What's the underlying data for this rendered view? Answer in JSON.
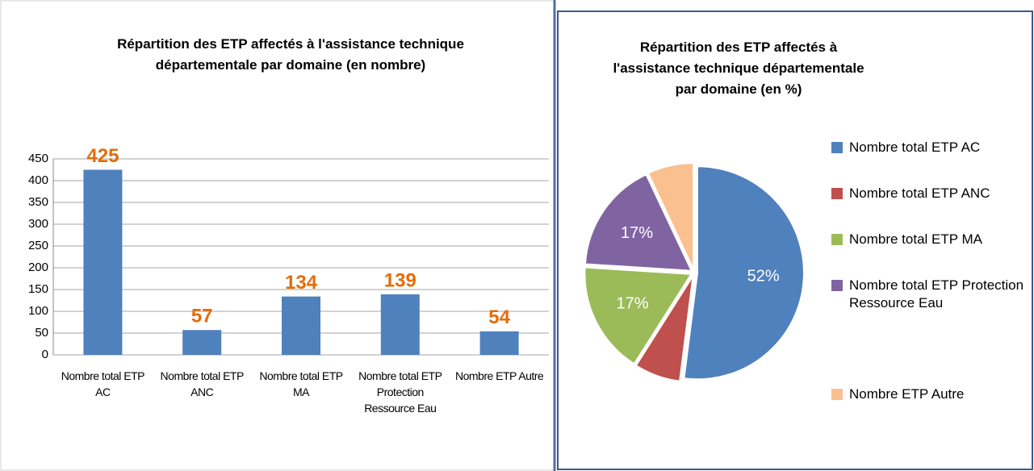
{
  "chart_data": [
    {
      "type": "bar",
      "title": "Répartition des ETP affectés à l'assistance technique départementale par domaine (en nombre)",
      "categories": [
        "Nombre total ETP AC",
        "Nombre total ETP ANC",
        "Nombre total ETP MA",
        "Nombre total ETP Protection Ressource Eau",
        "Nombre ETP Autre"
      ],
      "values": [
        425,
        57,
        134,
        139,
        54
      ],
      "color": "#4f81bd",
      "label_color": "#e46c0a",
      "ylim": [
        0,
        450
      ],
      "yticks": [
        0,
        50,
        100,
        150,
        200,
        250,
        300,
        350,
        400,
        450
      ],
      "grid": true
    },
    {
      "type": "pie",
      "title": "Répartition des ETP affectés à l'assistance technique départementale par domaine (en %)",
      "categories": [
        "Nombre total ETP AC",
        "Nombre total ETP ANC",
        "Nombre total ETP MA",
        "Nombre total ETP Protection Ressource Eau",
        "Nombre ETP Autre"
      ],
      "values": [
        52,
        7,
        17,
        17,
        7
      ],
      "value_labels": [
        "52%",
        null,
        "17%",
        "17%",
        null
      ],
      "colors": [
        "#4f81bd",
        "#c0504d",
        "#9bbb59",
        "#8064a2",
        "#fac090"
      ],
      "legend": "right"
    }
  ]
}
